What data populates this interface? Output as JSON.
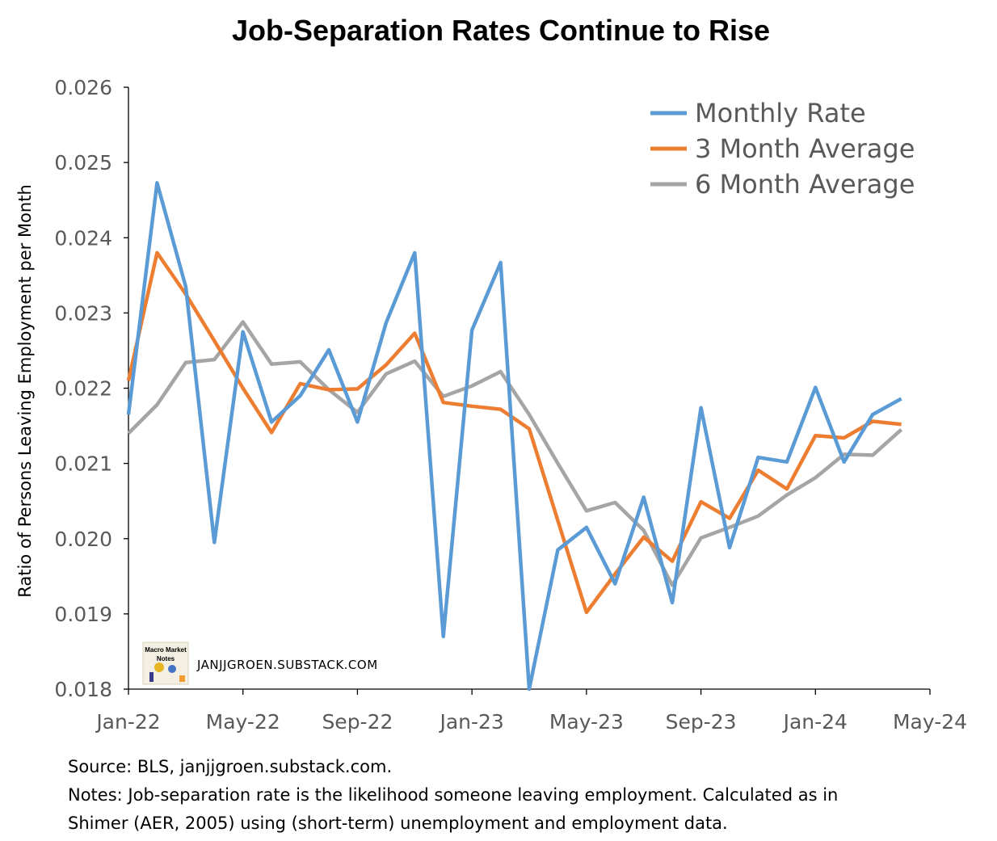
{
  "chart_data": {
    "type": "line",
    "title": "Job-Separation Rates Continue to Rise",
    "ylabel": "Ratio of Persons Leaving Employment per Month",
    "xlabel": "",
    "ylim": [
      0.018,
      0.026
    ],
    "yticks": [
      0.018,
      0.019,
      0.02,
      0.021,
      0.022,
      0.023,
      0.024,
      0.025,
      0.026
    ],
    "ytick_labels": [
      "0.018",
      "0.019",
      "0.020",
      "0.021",
      "0.022",
      "0.023",
      "0.024",
      "0.025",
      "0.026"
    ],
    "xticks": [
      "Jan-22",
      "May-22",
      "Sep-22",
      "Jan-23",
      "May-23",
      "Sep-23",
      "Jan-24",
      "May-24"
    ],
    "x": [
      "Jan-22",
      "Feb-22",
      "Mar-22",
      "Apr-22",
      "May-22",
      "Jun-22",
      "Jul-22",
      "Aug-22",
      "Sep-22",
      "Oct-22",
      "Nov-22",
      "Dec-22",
      "Jan-23",
      "Feb-23",
      "Mar-23",
      "Apr-23",
      "May-23",
      "Jun-23",
      "Jul-23",
      "Aug-23",
      "Sep-23",
      "Oct-23",
      "Nov-23",
      "Dec-23",
      "Jan-24",
      "Feb-24",
      "Mar-24",
      "Apr-24"
    ],
    "grid": false,
    "legend_position": "top-right",
    "series": [
      {
        "name": "Monthly Rate",
        "color": "#5B9BD5",
        "values": [
          0.02165,
          0.02473,
          0.02335,
          0.01995,
          0.02275,
          0.02155,
          0.0219,
          0.02251,
          0.02155,
          0.02287,
          0.0238,
          0.0187,
          0.02277,
          0.02367,
          0.018,
          0.01985,
          0.02015,
          0.0194,
          0.02055,
          0.01915,
          0.02174,
          0.01988,
          0.02108,
          0.02102,
          0.02201,
          0.02102,
          0.02165,
          0.02186
        ]
      },
      {
        "name": "3 Month Average",
        "color": "#ED7D31",
        "values": [
          0.0221,
          0.0238,
          0.02325,
          0.02263,
          0.022,
          0.02141,
          0.02206,
          0.02198,
          0.02199,
          0.02231,
          0.02273,
          0.02181,
          0.02176,
          0.02172,
          0.02146,
          null,
          0.01902,
          0.01953,
          0.02002,
          0.0197,
          0.02049,
          0.02027,
          0.02091,
          0.02066,
          0.02137,
          0.02134,
          0.02156,
          0.02152
        ]
      },
      {
        "name": "6 Month Average",
        "color": "#A5A5A5",
        "values": [
          0.0214,
          0.02178,
          0.02234,
          0.02238,
          0.02288,
          0.02232,
          0.02235,
          0.02198,
          0.02168,
          0.02219,
          0.02236,
          0.02189,
          0.02203,
          0.02222,
          0.02165,
          0.021,
          0.02037,
          0.02048,
          0.02011,
          0.01938,
          0.02001,
          0.02015,
          0.0203,
          0.02058,
          0.02081,
          0.02112,
          0.02111,
          0.02145
        ]
      }
    ]
  },
  "watermark": {
    "logo_text": "Macro Market Notes",
    "site": "JANJJGROEN.SUBSTACK.COM"
  },
  "footer": {
    "source": "Source: BLS, janjjgroen.substack.com.",
    "notes_line1": "Notes: Job-separation rate is the likelihood someone leaving employment. Calculated as in",
    "notes_line2": "Shimer (AER, 2005) using (short-term) unemployment and employment data."
  }
}
